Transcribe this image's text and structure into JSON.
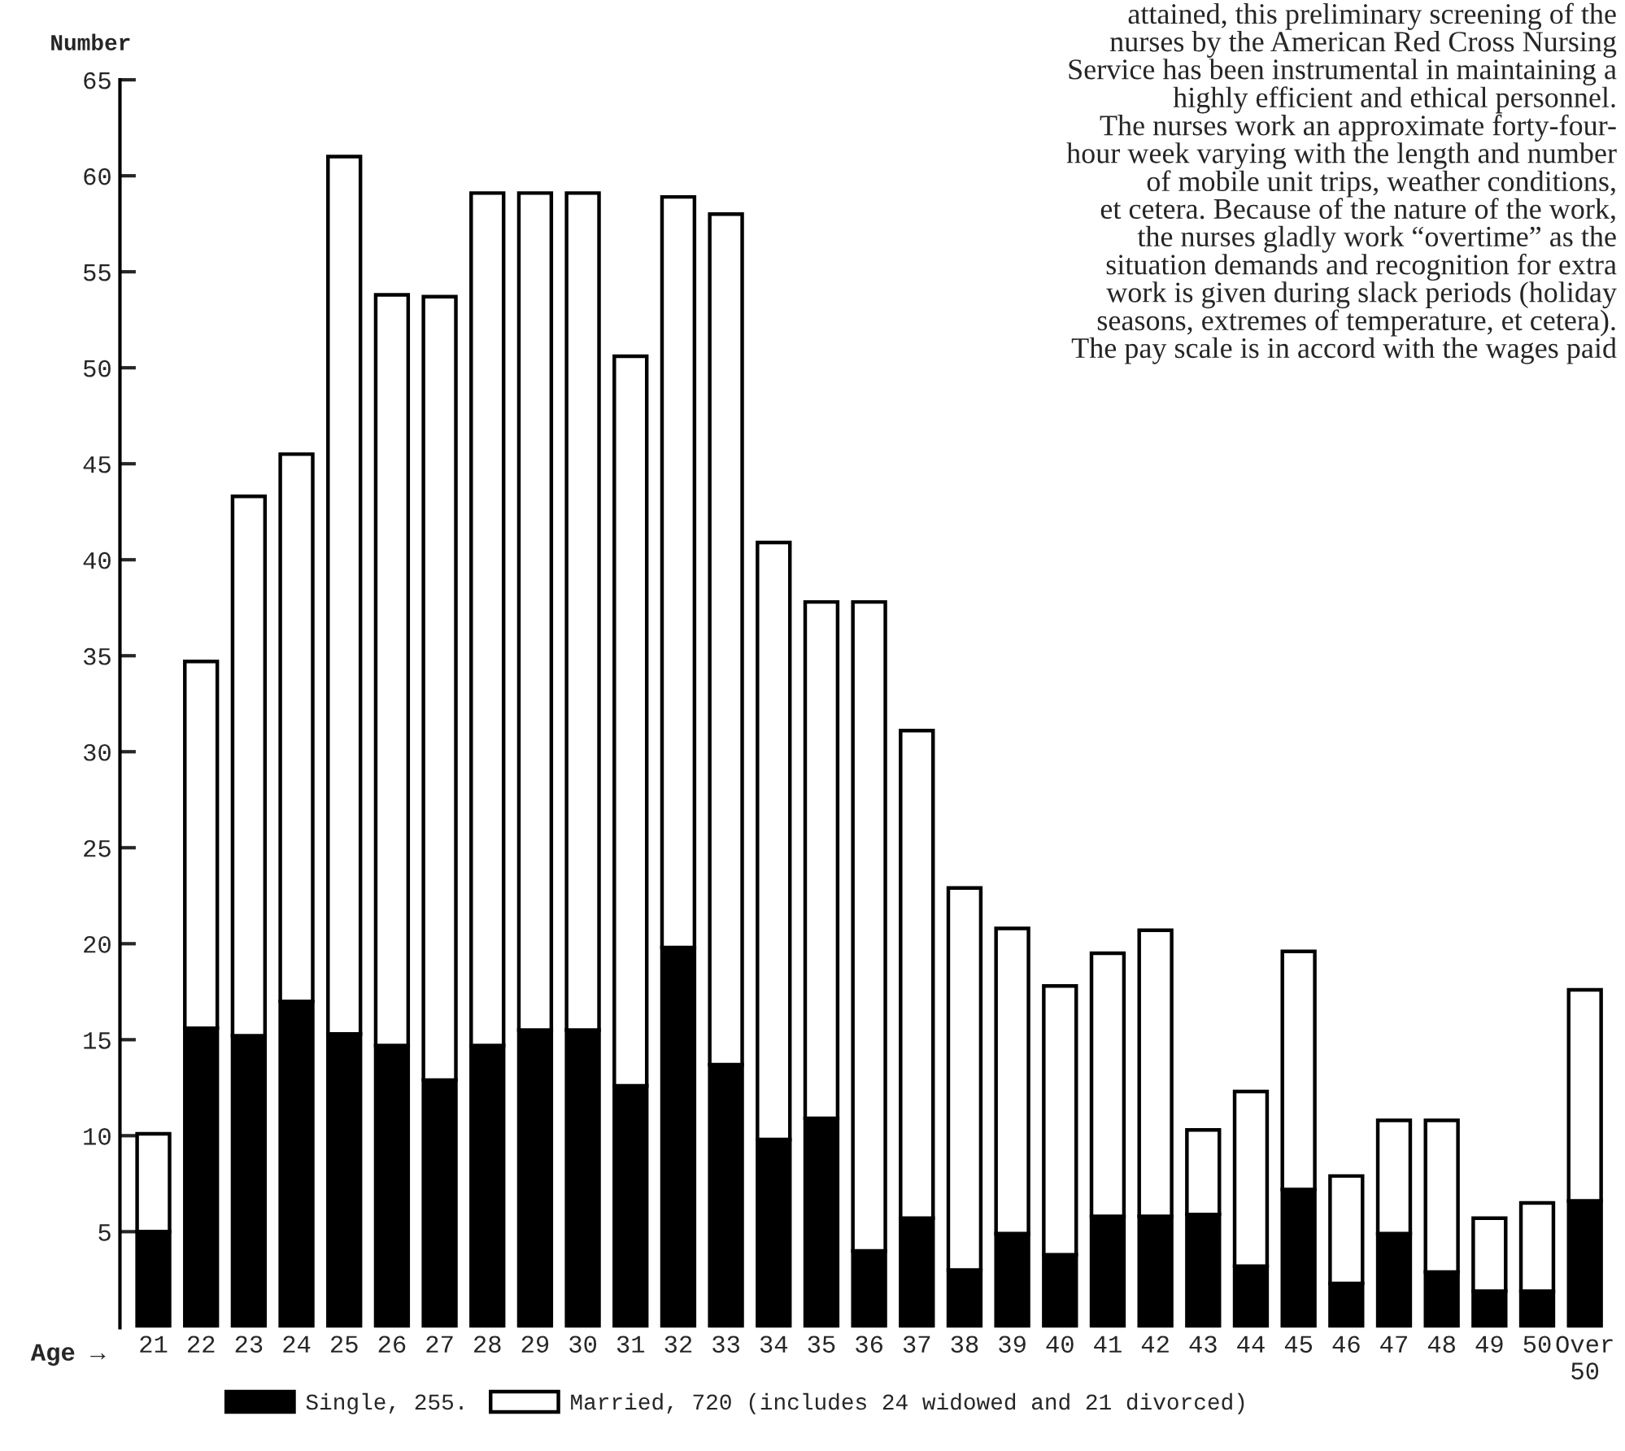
{
  "chart_data": {
    "type": "bar",
    "stacked": true,
    "ylabel": "Number",
    "xlabel": "Age →",
    "categories": [
      "21",
      "22",
      "23",
      "24",
      "25",
      "26",
      "27",
      "28",
      "29",
      "30",
      "31",
      "32",
      "33",
      "34",
      "35",
      "36",
      "37",
      "38",
      "39",
      "40",
      "41",
      "42",
      "43",
      "44",
      "45",
      "46",
      "47",
      "48",
      "49",
      "50",
      "Over\n50"
    ],
    "series": [
      {
        "name": "Single, 255.",
        "color": "#000000",
        "values": [
          5,
          15.6,
          15.2,
          17,
          15.3,
          14.7,
          12.9,
          14.7,
          15.5,
          15.5,
          12.6,
          19.8,
          13.7,
          9.8,
          10.9,
          4,
          5.7,
          3,
          4.9,
          3.8,
          5.8,
          5.8,
          5.9,
          3.2,
          7.2,
          2.3,
          4.9,
          2.9,
          1.9,
          1.9,
          6.6
        ]
      },
      {
        "name": "Married, 720 (includes 24 widowed and 21 divorced)",
        "color": "#ffffff",
        "values": [
          5.1,
          19.1,
          28.1,
          28.5,
          45.7,
          39.1,
          40.8,
          44.4,
          43.6,
          43.6,
          38,
          39.1,
          44.3,
          31.1,
          26.9,
          33.8,
          25.4,
          19.9,
          15.9,
          14,
          13.7,
          14.9,
          4.4,
          9.1,
          12.4,
          5.6,
          5.9,
          7.9,
          3.8,
          4.6,
          11
        ]
      }
    ],
    "ylim": [
      0,
      65
    ],
    "yticks": [
      5,
      10,
      15,
      20,
      25,
      30,
      35,
      40,
      45,
      50,
      55,
      60,
      65
    ],
    "legend": "bottom",
    "annotations": [
      "attained, this preliminary screening of the\nnurses by the American Red Cross Nursing\nService has been instrumental in maintaining a\nhighly efficient and ethical personnel.\n    The nurses work an approximate forty-four-\nhour week varying with the length and number\nof mobile unit trips, weather conditions,\net cetera. Because of the nature of the work,\nthe nurses gladly work “overtime” as the\nsituation demands and recognition for extra\nwork is given during slack periods (holiday\nseasons, extremes of temperature, et cetera).\nThe pay scale is in accord with the wages paid"
    ]
  }
}
